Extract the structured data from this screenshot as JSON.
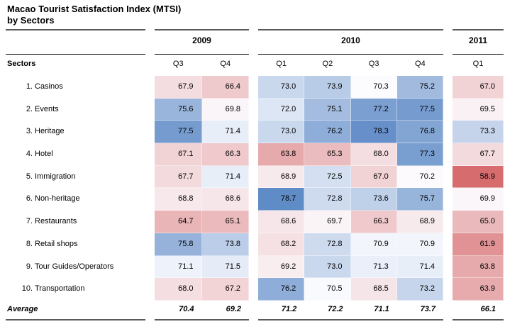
{
  "title": {
    "line1": "Macao Tourist Satisfaction Index (MTSI)",
    "line2": "by Sectors"
  },
  "table": {
    "sectors_header": "Sectors",
    "groups": [
      {
        "year": "2009",
        "quarters": [
          "Q3",
          "Q4"
        ]
      },
      {
        "year": "2010",
        "quarters": [
          "Q1",
          "Q2",
          "Q3",
          "Q4"
        ]
      },
      {
        "year": "2011",
        "quarters": [
          "Q1"
        ]
      }
    ],
    "rows": [
      {
        "num": "1.",
        "label": "Casinos",
        "values": [
          67.9,
          66.4,
          73.0,
          73.9,
          70.3,
          75.2,
          67.0
        ]
      },
      {
        "num": "2.",
        "label": "Events",
        "values": [
          75.6,
          69.8,
          72.0,
          75.1,
          77.2,
          77.5,
          69.5
        ]
      },
      {
        "num": "3.",
        "label": "Heritage",
        "values": [
          77.5,
          71.4,
          73.0,
          76.2,
          78.3,
          76.8,
          73.3
        ]
      },
      {
        "num": "4.",
        "label": "Hotel",
        "values": [
          67.1,
          66.3,
          63.8,
          65.3,
          68.0,
          77.3,
          67.7
        ]
      },
      {
        "num": "5.",
        "label": "Immigration",
        "values": [
          67.7,
          71.4,
          68.9,
          72.5,
          67.0,
          70.2,
          58.9
        ]
      },
      {
        "num": "6.",
        "label": "Non-heritage",
        "values": [
          68.8,
          68.6,
          78.7,
          72.8,
          73.6,
          75.7,
          69.9
        ]
      },
      {
        "num": "7.",
        "label": "Restaurants",
        "values": [
          64.7,
          65.1,
          68.6,
          69.7,
          66.3,
          68.9,
          65.0
        ]
      },
      {
        "num": "8.",
        "label": "Retail shops",
        "values": [
          75.8,
          73.8,
          68.2,
          72.8,
          70.9,
          70.9,
          61.9
        ]
      },
      {
        "num": "9.",
        "label": "Tour Guides/Operators",
        "values": [
          71.1,
          71.5,
          69.2,
          73.0,
          71.3,
          71.4,
          63.8
        ]
      },
      {
        "num": "10.",
        "label": "Transportation",
        "values": [
          68.0,
          67.2,
          76.2,
          70.5,
          68.5,
          73.2,
          63.9
        ]
      }
    ],
    "average": {
      "label": "Average",
      "values": [
        70.4,
        69.2,
        71.2,
        72.2,
        71.1,
        73.7,
        66.1
      ]
    }
  },
  "heatmap": {
    "min_value": 58.9,
    "mid_value": 70.35,
    "max_value": 78.7,
    "min_color": "#d66c6e",
    "mid_color": "#fcfcff",
    "max_color": "#5f8bc7"
  },
  "chart_data": {
    "type": "heatmap",
    "title": "Macao Tourist Satisfaction Index (MTSI) by Sectors",
    "columns": [
      "2009 Q3",
      "2009 Q4",
      "2010 Q1",
      "2010 Q2",
      "2010 Q3",
      "2010 Q4",
      "2011 Q1"
    ],
    "rows": [
      "Casinos",
      "Events",
      "Heritage",
      "Hotel",
      "Immigration",
      "Non-heritage",
      "Restaurants",
      "Retail shops",
      "Tour Guides/Operators",
      "Transportation"
    ],
    "values": [
      [
        67.9,
        66.4,
        73.0,
        73.9,
        70.3,
        75.2,
        67.0
      ],
      [
        75.6,
        69.8,
        72.0,
        75.1,
        77.2,
        77.5,
        69.5
      ],
      [
        77.5,
        71.4,
        73.0,
        76.2,
        78.3,
        76.8,
        73.3
      ],
      [
        67.1,
        66.3,
        63.8,
        65.3,
        68.0,
        77.3,
        67.7
      ],
      [
        67.7,
        71.4,
        68.9,
        72.5,
        67.0,
        70.2,
        58.9
      ],
      [
        68.8,
        68.6,
        78.7,
        72.8,
        73.6,
        75.7,
        69.9
      ],
      [
        64.7,
        65.1,
        68.6,
        69.7,
        66.3,
        68.9,
        65.0
      ],
      [
        75.8,
        73.8,
        68.2,
        72.8,
        70.9,
        70.9,
        61.9
      ],
      [
        71.1,
        71.5,
        69.2,
        73.0,
        71.3,
        71.4,
        63.8
      ],
      [
        68.0,
        67.2,
        76.2,
        70.5,
        68.5,
        73.2,
        63.9
      ]
    ],
    "average_row": {
      "label": "Average",
      "values": [
        70.4,
        69.2,
        71.2,
        72.2,
        71.1,
        73.7,
        66.1
      ]
    },
    "colorscale": {
      "low": "#d66c6e",
      "mid": "#fcfcff",
      "high": "#5f8bc7",
      "low_at": 58.9,
      "mid_at": 70.35,
      "high_at": 78.7
    }
  }
}
